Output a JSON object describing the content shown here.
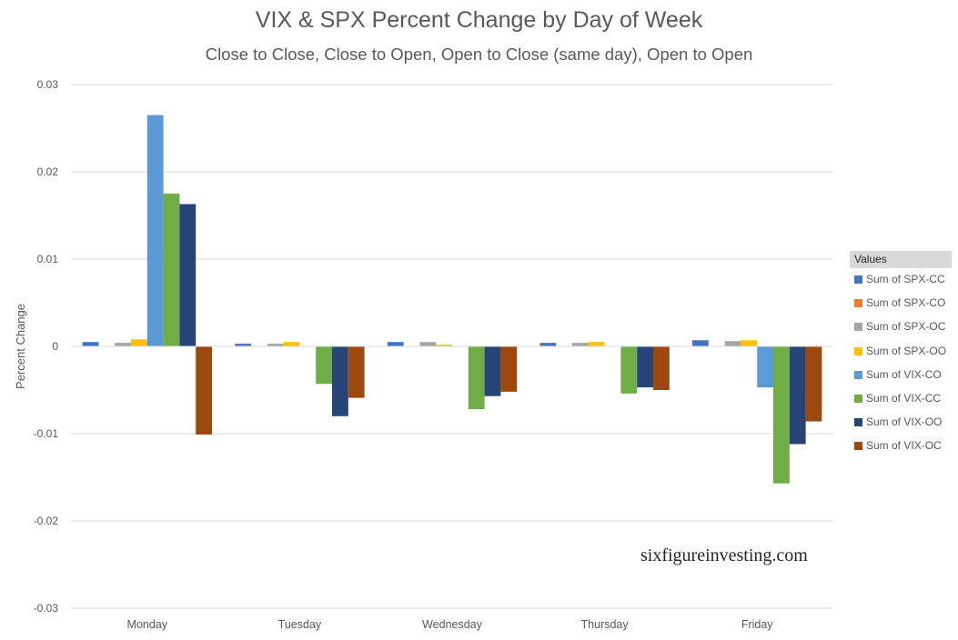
{
  "chart_data": {
    "type": "bar",
    "title": "VIX & SPX Percent Change by Day of Week",
    "subtitle": "Close to Close, Close to Open, Open to Close (same day), Open to Open",
    "xlabel": "",
    "ylabel": "Percent Change",
    "ylim": [
      -0.03,
      0.03
    ],
    "yticks": [
      0.03,
      0.02,
      0.01,
      0,
      -0.01,
      -0.02,
      -0.03
    ],
    "ytick_labels": [
      "0.03",
      "0.02",
      "0.01",
      "0",
      "-0.01",
      "-0.02",
      "-0.03"
    ],
    "grid": true,
    "legend_title": "Values",
    "legend_position": "right",
    "categories": [
      "Monday",
      "Tuesday",
      "Wednesday",
      "Thursday",
      "Friday"
    ],
    "series": [
      {
        "name": "Sum of SPX-CC",
        "color": "#4472c4",
        "values": [
          0.0005,
          0.0003,
          0.0005,
          0.0004,
          0.0007
        ]
      },
      {
        "name": "Sum of SPX-CO",
        "color": "#ed7d31",
        "values": [
          0.0,
          0.0,
          0.0,
          0.0,
          0.0
        ]
      },
      {
        "name": "Sum of SPX-OC",
        "color": "#a5a5a5",
        "values": [
          0.0004,
          0.0003,
          0.0005,
          0.0004,
          0.0006
        ]
      },
      {
        "name": "Sum of SPX-OO",
        "color": "#ffc000",
        "values": [
          0.0008,
          0.0005,
          0.0002,
          0.0005,
          0.0007
        ]
      },
      {
        "name": "Sum of VIX-CO",
        "color": "#5b9bd5",
        "values": [
          0.0265,
          0.0,
          0.0,
          0.0,
          -0.0047
        ]
      },
      {
        "name": "Sum of VIX-CC",
        "color": "#70ad47",
        "values": [
          0.0175,
          -0.0043,
          -0.0072,
          -0.0054,
          -0.0157
        ]
      },
      {
        "name": "Sum of VIX-OO",
        "color": "#264478",
        "values": [
          0.0163,
          -0.008,
          -0.0057,
          -0.0047,
          -0.0112
        ]
      },
      {
        "name": "Sum of VIX-OC",
        "color": "#9e480e",
        "values": [
          -0.0101,
          -0.0059,
          -0.0052,
          -0.005,
          -0.0086
        ]
      }
    ],
    "annotations": [
      "sixfigureinvesting.com"
    ]
  }
}
